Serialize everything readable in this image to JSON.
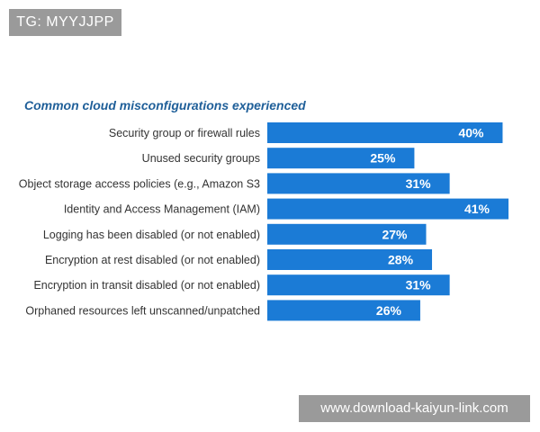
{
  "watermark_top": "TG: MYYJJPP",
  "watermark_bottom": "www.download-kaiyun-link.com",
  "colors": {
    "bar": "#1b7bd6",
    "title": "#1f5f99",
    "label": "#333333"
  },
  "chart_data": {
    "type": "bar",
    "orientation": "horizontal",
    "title": "Common cloud misconfigurations experienced",
    "xlabel": "",
    "ylabel": "",
    "grid": false,
    "xlim": [
      0,
      41
    ],
    "value_suffix": "%",
    "categories": [
      "Security group or firewall rules",
      "Unused security groups",
      "Object storage access policies (e.g., Amazon S3",
      "Identity and Access Management (IAM)",
      "Logging has been disabled (or not enabled)",
      "Encryption at rest disabled (or not enabled)",
      "Encryption in transit disabled (or not enabled)",
      "Orphaned resources left unscanned/unpatched"
    ],
    "values": [
      40,
      25,
      31,
      41,
      27,
      28,
      31,
      26
    ]
  }
}
